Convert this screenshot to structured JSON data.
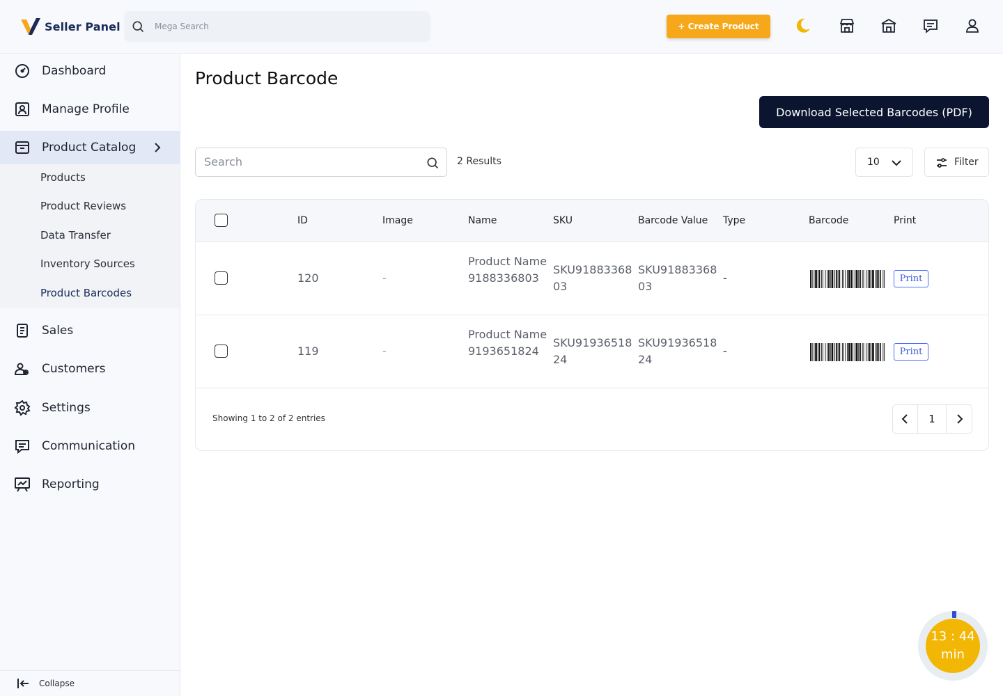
{
  "header": {
    "brand": "Seller Panel",
    "search_placeholder": "Mega Search",
    "create_label": "+ Create Product",
    "icons": [
      "moon-icon",
      "store-icon",
      "shop-icon",
      "chat-icon",
      "user-icon"
    ]
  },
  "sidebar": {
    "items": [
      {
        "label": "Dashboard",
        "icon": "dashboard-icon"
      },
      {
        "label": "Manage Profile",
        "icon": "profile-icon"
      },
      {
        "label": "Product Catalog",
        "icon": "catalog-icon"
      },
      {
        "label": "Sales",
        "icon": "sales-icon"
      },
      {
        "label": "Customers",
        "icon": "customers-icon"
      },
      {
        "label": "Settings",
        "icon": "settings-icon"
      },
      {
        "label": "Communication",
        "icon": "communication-icon"
      },
      {
        "label": "Reporting",
        "icon": "reporting-icon"
      }
    ],
    "sub_items": [
      "Products",
      "Product Reviews",
      "Data Transfer",
      "Inventory Sources",
      "Product Barcodes"
    ],
    "collapse_label": "Collapse"
  },
  "main": {
    "title": "Product Barcode",
    "download_label": "Download Selected Barcodes (PDF)",
    "search_placeholder": "Search",
    "results": "2 Results",
    "per_page": "10",
    "filter_label": "Filter",
    "columns": [
      "ID",
      "Image",
      "Name",
      "SKU",
      "Barcode Value",
      "Type",
      "Barcode",
      "Print"
    ],
    "rows": [
      {
        "id": "120",
        "image": "-",
        "name": "Product Name9188336803",
        "sku": "SKU9188336803",
        "barcode_value": "SKU9188336803",
        "type": "-",
        "print": "Print"
      },
      {
        "id": "119",
        "image": "-",
        "name": "Product Name9193651824",
        "sku": "SKU9193651824",
        "barcode_value": "SKU9193651824",
        "type": "-",
        "print": "Print"
      }
    ],
    "showing": "Showing 1 to 2 of 2 entries",
    "page": "1"
  },
  "timer": {
    "line1": "13 : 44",
    "line2": "min"
  },
  "colors": {
    "accent": "#f6a81a",
    "primary_dark": "#0b1530",
    "timer": "#f2b705",
    "link": "#3a5bd9"
  }
}
